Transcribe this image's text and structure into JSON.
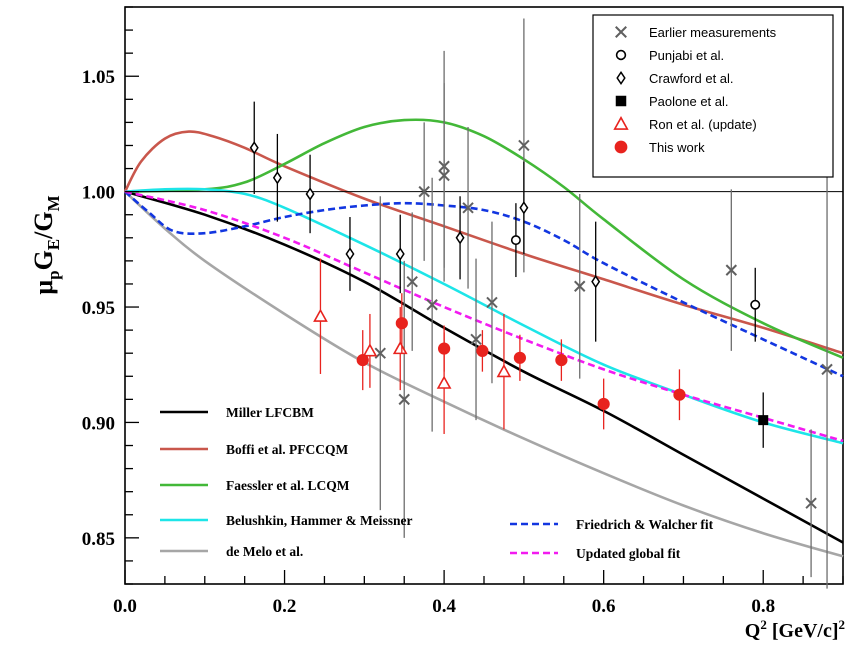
{
  "chart_data": {
    "type": "scatter",
    "ylabel": "μpGE/GM",
    "xlabel": "Q² [GeV/c]²",
    "xlim": [
      0,
      0.9
    ],
    "ylim": [
      0.83,
      1.08
    ],
    "x_ticks": [
      {
        "value": 0.0,
        "label": "0.0"
      },
      {
        "value": 0.2,
        "label": "0.2"
      },
      {
        "value": 0.4,
        "label": "0.4"
      },
      {
        "value": 0.6,
        "label": "0.6"
      },
      {
        "value": 0.8,
        "label": "0.8"
      }
    ],
    "y_ticks": [
      {
        "value": 0.85,
        "label": "0.85"
      },
      {
        "value": 0.9,
        "label": "0.90"
      },
      {
        "value": 0.95,
        "label": "0.95"
      },
      {
        "value": 1.0,
        "label": "1.00"
      },
      {
        "value": 1.05,
        "label": "1.05"
      }
    ],
    "reference_line": 1.0,
    "legend_position": "top-right",
    "data_series": [
      {
        "name": "Earlier measurements",
        "marker": "x",
        "color": "#606060",
        "points": [
          {
            "x": 0.32,
            "y": 0.93,
            "err": 0.068
          },
          {
            "x": 0.35,
            "y": 0.91,
            "err": 0.06
          },
          {
            "x": 0.36,
            "y": 0.961,
            "err": 0.03
          },
          {
            "x": 0.375,
            "y": 1.0,
            "err": 0.03
          },
          {
            "x": 0.385,
            "y": 0.951,
            "err": 0.055
          },
          {
            "x": 0.4,
            "y": 1.011,
            "err": 0.05
          },
          {
            "x": 0.4,
            "y": 1.007,
            "err": 0.04
          },
          {
            "x": 0.43,
            "y": 0.993,
            "err": 0.035
          },
          {
            "x": 0.44,
            "y": 0.936,
            "err": 0.035
          },
          {
            "x": 0.46,
            "y": 0.952,
            "err": 0.035
          },
          {
            "x": 0.5,
            "y": 1.02,
            "err": 0.055
          },
          {
            "x": 0.57,
            "y": 0.959,
            "err": 0.04
          },
          {
            "x": 0.76,
            "y": 0.966,
            "err": 0.035
          },
          {
            "x": 0.86,
            "y": 0.865,
            "err": 0.032
          },
          {
            "x": 0.88,
            "y": 0.923,
            "err": 0.095
          }
        ]
      },
      {
        "name": "Punjabi et al.",
        "marker": "open-circle",
        "color": "#000000",
        "points": [
          {
            "x": 0.49,
            "y": 0.979,
            "err": 0.016
          },
          {
            "x": 0.79,
            "y": 0.951,
            "err": 0.016
          }
        ]
      },
      {
        "name": "Crawford et al.",
        "marker": "open-diamond",
        "color": "#000000",
        "points": [
          {
            "x": 0.162,
            "y": 1.019,
            "err": 0.02
          },
          {
            "x": 0.191,
            "y": 1.006,
            "err": 0.019
          },
          {
            "x": 0.232,
            "y": 0.999,
            "err": 0.017
          },
          {
            "x": 0.282,
            "y": 0.973,
            "err": 0.016
          },
          {
            "x": 0.345,
            "y": 0.973,
            "err": 0.017
          },
          {
            "x": 0.42,
            "y": 0.98,
            "err": 0.018
          },
          {
            "x": 0.5,
            "y": 0.993,
            "err": 0.02
          },
          {
            "x": 0.59,
            "y": 0.961,
            "err": 0.026
          }
        ]
      },
      {
        "name": "Paolone et al.",
        "marker": "filled-square",
        "color": "#000000",
        "points": [
          {
            "x": 0.8,
            "y": 0.901,
            "err": 0.012
          }
        ]
      },
      {
        "name": "Ron et al. (update)",
        "marker": "open-triangle",
        "color": "#e8231e",
        "points": [
          {
            "x": 0.245,
            "y": 0.946,
            "err": 0.025
          },
          {
            "x": 0.307,
            "y": 0.931,
            "err": 0.016
          },
          {
            "x": 0.345,
            "y": 0.932,
            "err": 0.018
          },
          {
            "x": 0.4,
            "y": 0.917,
            "err": 0.022
          },
          {
            "x": 0.475,
            "y": 0.922,
            "err": 0.025
          }
        ]
      },
      {
        "name": "This work",
        "marker": "filled-circle",
        "color": "#e8231e",
        "points": [
          {
            "x": 0.298,
            "y": 0.927,
            "err": 0.013
          },
          {
            "x": 0.347,
            "y": 0.943,
            "err": 0.013
          },
          {
            "x": 0.4,
            "y": 0.932,
            "err": 0.01
          },
          {
            "x": 0.448,
            "y": 0.931,
            "err": 0.009
          },
          {
            "x": 0.495,
            "y": 0.928,
            "err": 0.01
          },
          {
            "x": 0.547,
            "y": 0.927,
            "err": 0.009
          },
          {
            "x": 0.6,
            "y": 0.908,
            "err": 0.011
          },
          {
            "x": 0.695,
            "y": 0.912,
            "err": 0.011
          }
        ]
      }
    ],
    "theory_curves": [
      {
        "name": "Miller LFCBM",
        "color": "#000000",
        "dash": false,
        "x": [
          0.0,
          0.1,
          0.2,
          0.3,
          0.4,
          0.5,
          0.6,
          0.7,
          0.8,
          0.9
        ],
        "y": [
          1.0,
          0.99,
          0.977,
          0.961,
          0.941,
          0.922,
          0.905,
          0.886,
          0.867,
          0.848
        ]
      },
      {
        "name": "Boffi et al. PFCCQM",
        "color": "#c9574c",
        "dash": false,
        "x": [
          0.0,
          0.02,
          0.05,
          0.08,
          0.11,
          0.15,
          0.2,
          0.3,
          0.4,
          0.5,
          0.6,
          0.7,
          0.8,
          0.9
        ],
        "y": [
          1.0,
          1.013,
          1.023,
          1.026,
          1.024,
          1.019,
          1.011,
          0.997,
          0.985,
          0.973,
          0.962,
          0.951,
          0.941,
          0.93
        ]
      },
      {
        "name": "Faessler et al. LCQM",
        "color": "#43b838",
        "dash": false,
        "x": [
          0.0,
          0.1,
          0.15,
          0.2,
          0.25,
          0.3,
          0.35,
          0.4,
          0.45,
          0.5,
          0.55,
          0.6,
          0.7,
          0.8,
          0.9
        ],
        "y": [
          1.0,
          1.001,
          1.004,
          1.012,
          1.021,
          1.028,
          1.031,
          1.03,
          1.024,
          1.014,
          1.002,
          0.988,
          0.962,
          0.943,
          0.928
        ]
      },
      {
        "name": "Belushkin, Hammer & Meissner",
        "color": "#1de5e8",
        "dash": false,
        "x": [
          0.0,
          0.05,
          0.1,
          0.15,
          0.2,
          0.3,
          0.4,
          0.5,
          0.6,
          0.7,
          0.8,
          0.9
        ],
        "y": [
          1.0,
          1.001,
          1.001,
          0.999,
          0.993,
          0.977,
          0.96,
          0.942,
          0.925,
          0.912,
          0.9,
          0.891
        ]
      },
      {
        "name": "de Melo et al.",
        "color": "#a6a6a6",
        "dash": false,
        "x": [
          0.0,
          0.05,
          0.1,
          0.2,
          0.3,
          0.4,
          0.5,
          0.6,
          0.7,
          0.8,
          0.9
        ],
        "y": [
          1.0,
          0.984,
          0.97,
          0.947,
          0.926,
          0.909,
          0.893,
          0.878,
          0.864,
          0.852,
          0.842
        ]
      },
      {
        "name": "Friedrich & Walcher fit",
        "color": "#1236e0",
        "dash": true,
        "x": [
          0.0,
          0.03,
          0.06,
          0.1,
          0.15,
          0.2,
          0.25,
          0.3,
          0.35,
          0.4,
          0.45,
          0.5,
          0.55,
          0.6,
          0.7,
          0.8,
          0.9
        ],
        "y": [
          1.0,
          0.991,
          0.983,
          0.982,
          0.985,
          0.989,
          0.992,
          0.994,
          0.995,
          0.994,
          0.992,
          0.987,
          0.979,
          0.969,
          0.952,
          0.936,
          0.92
        ]
      },
      {
        "name": "Updated global fit",
        "color": "#f21bf0",
        "dash": true,
        "x": [
          0.0,
          0.1,
          0.2,
          0.3,
          0.4,
          0.5,
          0.6,
          0.7,
          0.8,
          0.9
        ],
        "y": [
          1.0,
          0.992,
          0.98,
          0.965,
          0.95,
          0.936,
          0.923,
          0.912,
          0.902,
          0.892
        ]
      }
    ]
  }
}
